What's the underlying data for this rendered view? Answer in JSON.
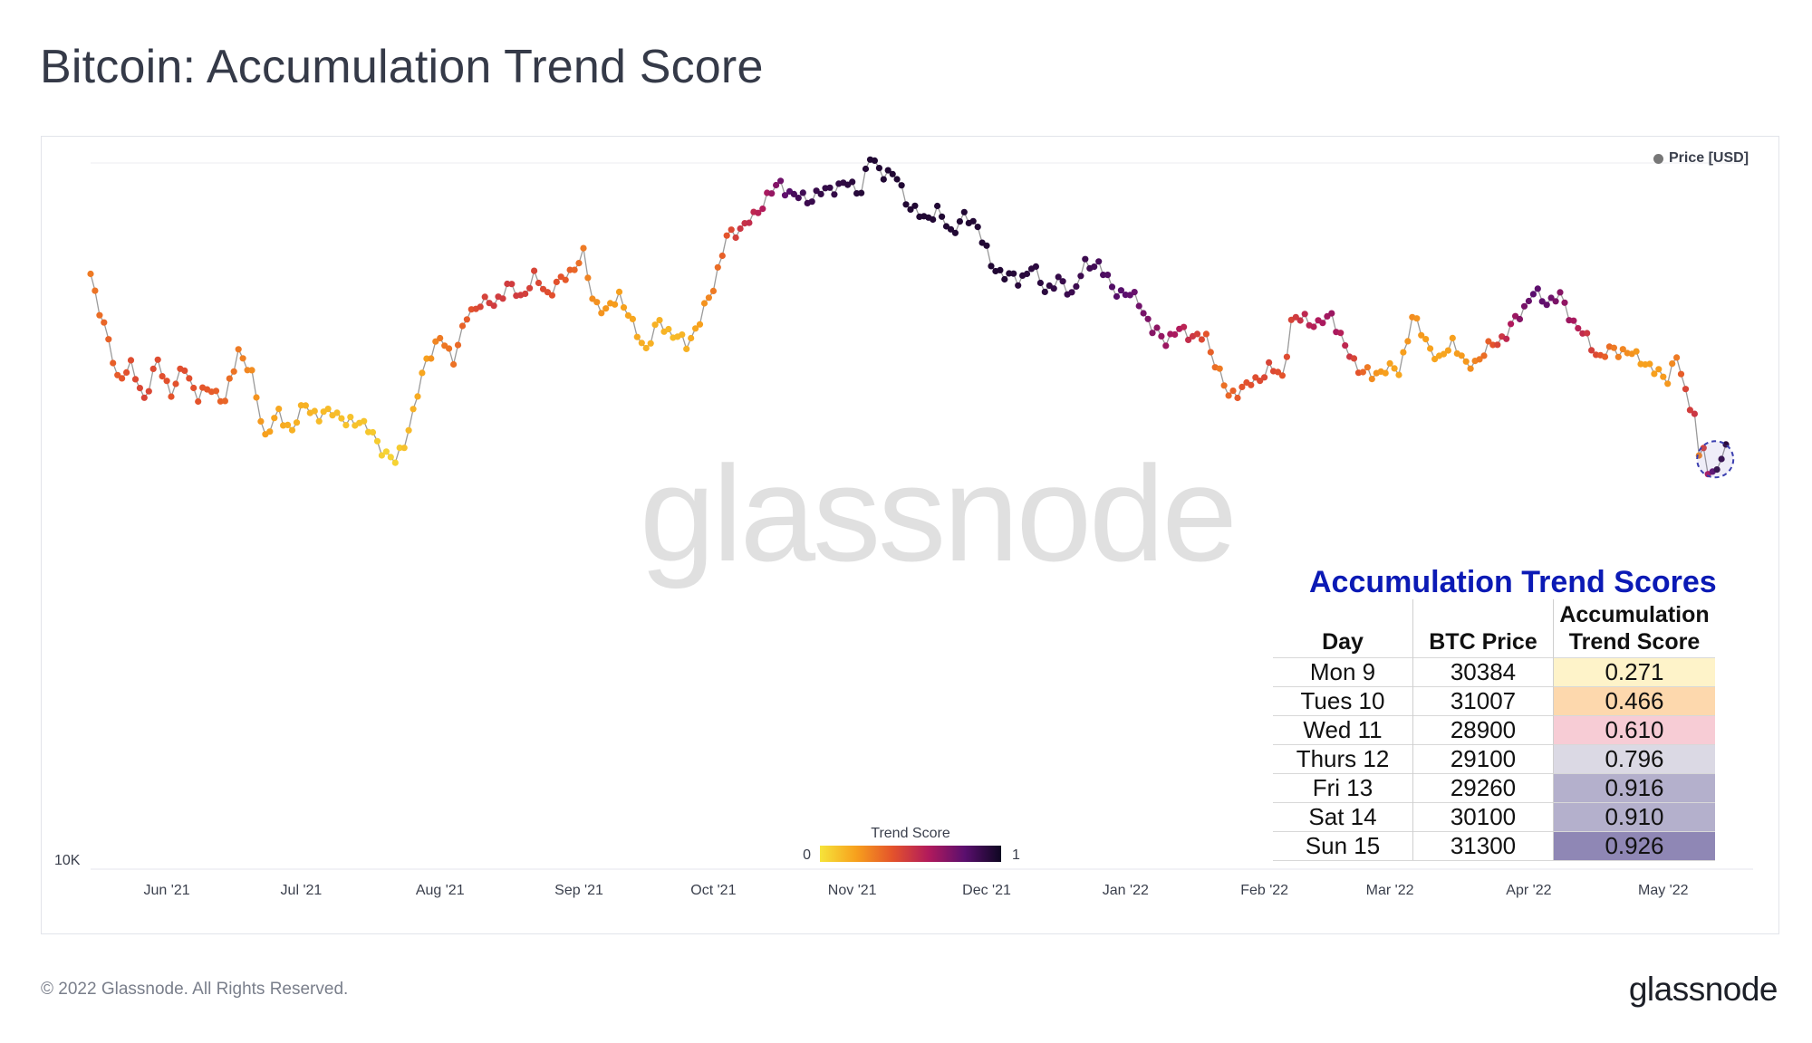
{
  "page": {
    "title": "Bitcoin: Accumulation Trend Score",
    "copyright": "© 2022 Glassnode. All Rights Reserved.",
    "logo": "glassnode",
    "watermark": "glassnode"
  },
  "chart_data": {
    "type": "scatter",
    "title": "Bitcoin: Accumulation Trend Score",
    "xlabel": "",
    "ylabel": "",
    "legend": {
      "label": "Price [USD]",
      "placement": "top-right"
    },
    "x_ticks": [
      "Jun '21",
      "Jul '21",
      "Aug '21",
      "Sep '21",
      "Oct '21",
      "Nov '21",
      "Dec '21",
      "Jan '22",
      "Feb '22",
      "Mar '22",
      "Apr '22",
      "May '22"
    ],
    "x_range": [
      "2021-05-15",
      "2022-05-15"
    ],
    "y_scale": "log",
    "y_tick_label": "10K",
    "y_range": [
      10000,
      70000
    ],
    "colorbar": {
      "title": "Trend Score",
      "min_label": "0",
      "max_label": "1",
      "colors": [
        "#f6e43a",
        "#f7a01d",
        "#e4532b",
        "#b11a5c",
        "#5a0f6e",
        "#0e0621"
      ]
    },
    "series": [
      {
        "name": "Price [USD]",
        "anchors": [
          {
            "day": 0,
            "price": 49500,
            "score": 0.3
          },
          {
            "day": 3,
            "price": 43000,
            "score": 0.35
          },
          {
            "day": 6,
            "price": 37500,
            "score": 0.38
          },
          {
            "day": 9,
            "price": 38500,
            "score": 0.42
          },
          {
            "day": 12,
            "price": 35500,
            "score": 0.45
          },
          {
            "day": 15,
            "price": 39000,
            "score": 0.42
          },
          {
            "day": 18,
            "price": 36000,
            "score": 0.4
          },
          {
            "day": 21,
            "price": 38500,
            "score": 0.42
          },
          {
            "day": 24,
            "price": 35500,
            "score": 0.4
          },
          {
            "day": 27,
            "price": 36500,
            "score": 0.38
          },
          {
            "day": 30,
            "price": 35000,
            "score": 0.35
          },
          {
            "day": 33,
            "price": 40500,
            "score": 0.3
          },
          {
            "day": 36,
            "price": 37500,
            "score": 0.25
          },
          {
            "day": 39,
            "price": 32000,
            "score": 0.2
          },
          {
            "day": 42,
            "price": 34000,
            "score": 0.18
          },
          {
            "day": 45,
            "price": 32500,
            "score": 0.15
          },
          {
            "day": 48,
            "price": 35000,
            "score": 0.15
          },
          {
            "day": 51,
            "price": 33500,
            "score": 0.12
          },
          {
            "day": 54,
            "price": 34500,
            "score": 0.12
          },
          {
            "day": 57,
            "price": 33000,
            "score": 0.1
          },
          {
            "day": 60,
            "price": 33500,
            "score": 0.1
          },
          {
            "day": 63,
            "price": 32000,
            "score": 0.08
          },
          {
            "day": 66,
            "price": 30500,
            "score": 0.05
          },
          {
            "day": 68,
            "price": 29800,
            "score": 0.05
          },
          {
            "day": 70,
            "price": 31500,
            "score": 0.1
          },
          {
            "day": 72,
            "price": 34000,
            "score": 0.15
          },
          {
            "day": 75,
            "price": 39500,
            "score": 0.2
          },
          {
            "day": 78,
            "price": 41500,
            "score": 0.3
          },
          {
            "day": 81,
            "price": 39500,
            "score": 0.32
          },
          {
            "day": 84,
            "price": 44000,
            "score": 0.38
          },
          {
            "day": 87,
            "price": 46000,
            "score": 0.45
          },
          {
            "day": 90,
            "price": 45500,
            "score": 0.48
          },
          {
            "day": 93,
            "price": 48000,
            "score": 0.48
          },
          {
            "day": 96,
            "price": 46500,
            "score": 0.48
          },
          {
            "day": 99,
            "price": 49000,
            "score": 0.45
          },
          {
            "day": 102,
            "price": 47000,
            "score": 0.42
          },
          {
            "day": 105,
            "price": 48500,
            "score": 0.4
          },
          {
            "day": 108,
            "price": 50500,
            "score": 0.35
          },
          {
            "day": 110,
            "price": 52000,
            "score": 0.3
          },
          {
            "day": 112,
            "price": 46500,
            "score": 0.25
          },
          {
            "day": 115,
            "price": 44500,
            "score": 0.22
          },
          {
            "day": 118,
            "price": 47000,
            "score": 0.2
          },
          {
            "day": 121,
            "price": 43000,
            "score": 0.18
          },
          {
            "day": 124,
            "price": 40500,
            "score": 0.15
          },
          {
            "day": 127,
            "price": 43500,
            "score": 0.15
          },
          {
            "day": 130,
            "price": 42000,
            "score": 0.12
          },
          {
            "day": 133,
            "price": 41000,
            "score": 0.15
          },
          {
            "day": 136,
            "price": 43500,
            "score": 0.2
          },
          {
            "day": 139,
            "price": 48000,
            "score": 0.3
          },
          {
            "day": 142,
            "price": 54500,
            "score": 0.4
          },
          {
            "day": 145,
            "price": 56000,
            "score": 0.5
          },
          {
            "day": 148,
            "price": 57500,
            "score": 0.55
          },
          {
            "day": 151,
            "price": 61000,
            "score": 0.62
          },
          {
            "day": 154,
            "price": 63000,
            "score": 0.75
          },
          {
            "day": 157,
            "price": 61000,
            "score": 0.85
          },
          {
            "day": 160,
            "price": 60500,
            "score": 0.88
          },
          {
            "day": 163,
            "price": 61500,
            "score": 0.9
          },
          {
            "day": 166,
            "price": 62500,
            "score": 0.9
          },
          {
            "day": 169,
            "price": 63000,
            "score": 0.92
          },
          {
            "day": 172,
            "price": 62000,
            "score": 0.94
          },
          {
            "day": 174,
            "price": 67500,
            "score": 0.95
          },
          {
            "day": 177,
            "price": 65000,
            "score": 0.95
          },
          {
            "day": 180,
            "price": 64000,
            "score": 0.95
          },
          {
            "day": 183,
            "price": 59000,
            "score": 0.95
          },
          {
            "day": 186,
            "price": 57500,
            "score": 0.95
          },
          {
            "day": 189,
            "price": 58500,
            "score": 0.95
          },
          {
            "day": 192,
            "price": 55500,
            "score": 0.95
          },
          {
            "day": 195,
            "price": 57500,
            "score": 0.95
          },
          {
            "day": 198,
            "price": 56500,
            "score": 0.95
          },
          {
            "day": 201,
            "price": 50500,
            "score": 0.95
          },
          {
            "day": 204,
            "price": 49500,
            "score": 0.95
          },
          {
            "day": 207,
            "price": 48500,
            "score": 0.93
          },
          {
            "day": 210,
            "price": 50500,
            "score": 0.92
          },
          {
            "day": 213,
            "price": 47500,
            "score": 0.92
          },
          {
            "day": 216,
            "price": 48500,
            "score": 0.9
          },
          {
            "day": 219,
            "price": 47000,
            "score": 0.88
          },
          {
            "day": 222,
            "price": 50500,
            "score": 0.88
          },
          {
            "day": 225,
            "price": 51000,
            "score": 0.85
          },
          {
            "day": 228,
            "price": 47500,
            "score": 0.82
          },
          {
            "day": 231,
            "price": 47000,
            "score": 0.8
          },
          {
            "day": 234,
            "price": 46000,
            "score": 0.75
          },
          {
            "day": 237,
            "price": 42500,
            "score": 0.7
          },
          {
            "day": 240,
            "price": 41500,
            "score": 0.65
          },
          {
            "day": 243,
            "price": 42500,
            "score": 0.6
          },
          {
            "day": 246,
            "price": 42000,
            "score": 0.5
          },
          {
            "day": 249,
            "price": 41500,
            "score": 0.4
          },
          {
            "day": 252,
            "price": 38000,
            "score": 0.3
          },
          {
            "day": 254,
            "price": 35500,
            "score": 0.35
          },
          {
            "day": 257,
            "price": 36500,
            "score": 0.4
          },
          {
            "day": 260,
            "price": 37000,
            "score": 0.42
          },
          {
            "day": 263,
            "price": 38500,
            "score": 0.45
          },
          {
            "day": 266,
            "price": 37500,
            "score": 0.4
          },
          {
            "day": 268,
            "price": 43500,
            "score": 0.45
          },
          {
            "day": 271,
            "price": 44000,
            "score": 0.55
          },
          {
            "day": 274,
            "price": 43000,
            "score": 0.6
          },
          {
            "day": 277,
            "price": 44500,
            "score": 0.65
          },
          {
            "day": 280,
            "price": 40500,
            "score": 0.55
          },
          {
            "day": 283,
            "price": 38500,
            "score": 0.4
          },
          {
            "day": 286,
            "price": 37500,
            "score": 0.25
          },
          {
            "day": 289,
            "price": 38500,
            "score": 0.2
          },
          {
            "day": 292,
            "price": 38000,
            "score": 0.18
          },
          {
            "day": 295,
            "price": 44000,
            "score": 0.25
          },
          {
            "day": 298,
            "price": 41500,
            "score": 0.2
          },
          {
            "day": 301,
            "price": 39000,
            "score": 0.18
          },
          {
            "day": 304,
            "price": 41500,
            "score": 0.2
          },
          {
            "day": 307,
            "price": 38500,
            "score": 0.22
          },
          {
            "day": 310,
            "price": 39500,
            "score": 0.3
          },
          {
            "day": 313,
            "price": 41000,
            "score": 0.4
          },
          {
            "day": 316,
            "price": 42000,
            "score": 0.55
          },
          {
            "day": 319,
            "price": 44500,
            "score": 0.7
          },
          {
            "day": 322,
            "price": 47000,
            "score": 0.8
          },
          {
            "day": 325,
            "price": 46000,
            "score": 0.78
          },
          {
            "day": 328,
            "price": 46500,
            "score": 0.7
          },
          {
            "day": 331,
            "price": 43500,
            "score": 0.62
          },
          {
            "day": 334,
            "price": 41500,
            "score": 0.5
          },
          {
            "day": 337,
            "price": 39500,
            "score": 0.4
          },
          {
            "day": 340,
            "price": 40500,
            "score": 0.3
          },
          {
            "day": 343,
            "price": 40000,
            "score": 0.25
          },
          {
            "day": 346,
            "price": 39500,
            "score": 0.2
          },
          {
            "day": 349,
            "price": 38000,
            "score": 0.2
          },
          {
            "day": 352,
            "price": 37500,
            "score": 0.22
          },
          {
            "day": 354,
            "price": 39500,
            "score": 0.3
          },
          {
            "day": 356,
            "price": 36000,
            "score": 0.45
          },
          {
            "day": 358,
            "price": 34000,
            "score": 0.5
          },
          {
            "day": 359,
            "price": 30384,
            "score": 0.271
          },
          {
            "day": 360,
            "price": 31007,
            "score": 0.466
          },
          {
            "day": 361,
            "price": 28900,
            "score": 0.61
          },
          {
            "day": 362,
            "price": 29100,
            "score": 0.796
          },
          {
            "day": 363,
            "price": 29260,
            "score": 0.916
          },
          {
            "day": 364,
            "price": 30100,
            "score": 0.91
          },
          {
            "day": 365,
            "price": 31300,
            "score": 0.926
          }
        ]
      }
    ],
    "highlight": {
      "from_day": 359,
      "to_day": 365
    }
  },
  "table": {
    "title": "Accumulation Trend Scores",
    "headers": {
      "day": "Day",
      "price": "BTC Price",
      "score_line1": "Accumulation",
      "score_line2": "Trend Score"
    },
    "rows": [
      {
        "day": "Mon 9",
        "price": "30384",
        "score": "0.271",
        "color": "#fef3c9"
      },
      {
        "day": "Tues 10",
        "price": "31007",
        "score": "0.466",
        "color": "#fdd8ad"
      },
      {
        "day": "Wed 11",
        "price": "28900",
        "score": "0.610",
        "color": "#f7ccd5"
      },
      {
        "day": "Thurs 12",
        "price": "29100",
        "score": "0.796",
        "color": "#dbd9e4"
      },
      {
        "day": "Fri 13",
        "price": "29260",
        "score": "0.916",
        "color": "#b4b0cc"
      },
      {
        "day": "Sat 14",
        "price": "30100",
        "score": "0.910",
        "color": "#b4b0cc"
      },
      {
        "day": "Sun 15",
        "price": "31300",
        "score": "0.926",
        "color": "#8f87b5"
      }
    ]
  }
}
